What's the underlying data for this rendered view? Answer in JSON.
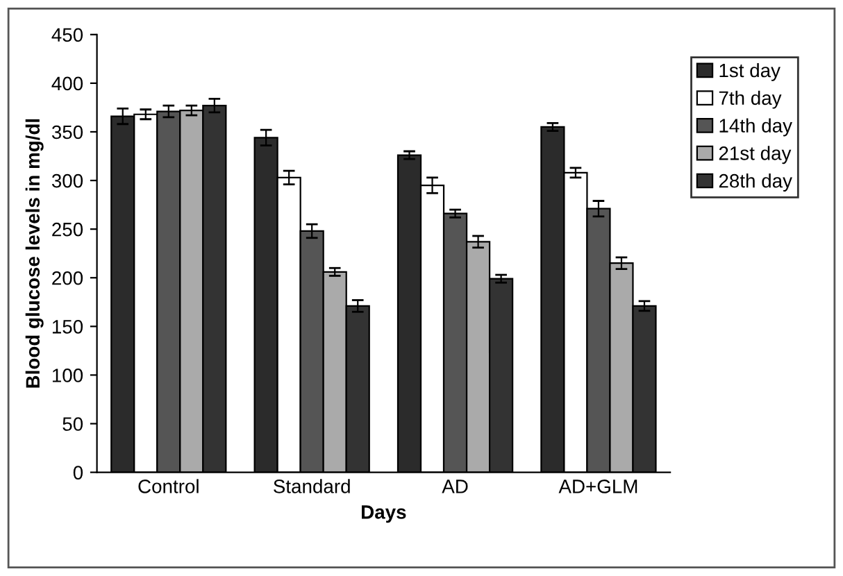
{
  "chart_data": {
    "type": "bar",
    "xlabel": "Days",
    "ylabel": "Blood glucose levels in mg/dl",
    "categories": [
      "Control",
      "Standard",
      "AD",
      "AD+GLM"
    ],
    "series": [
      {
        "name": "1st day",
        "color": "#2b2b2b",
        "values": [
          366,
          344,
          326,
          355
        ],
        "errors": [
          8,
          8,
          4,
          4
        ]
      },
      {
        "name": "7th day",
        "color": "#ffffff",
        "values": [
          368,
          303,
          295,
          308
        ],
        "errors": [
          5,
          7,
          8,
          5
        ]
      },
      {
        "name": "14th day",
        "color": "#555555",
        "values": [
          371,
          248,
          266,
          271
        ],
        "errors": [
          6,
          7,
          4,
          8
        ]
      },
      {
        "name": "21st day",
        "color": "#aaaaaa",
        "values": [
          372,
          206,
          237,
          215
        ],
        "errors": [
          5,
          4,
          6,
          6
        ]
      },
      {
        "name": "28th day",
        "color": "#333333",
        "values": [
          377,
          171,
          199,
          171
        ],
        "errors": [
          7,
          6,
          4,
          5
        ]
      }
    ],
    "ylim": [
      0,
      450
    ],
    "yticks": [
      0,
      50,
      100,
      150,
      200,
      250,
      300,
      350,
      400,
      450
    ],
    "grid": false,
    "legend": "right"
  }
}
